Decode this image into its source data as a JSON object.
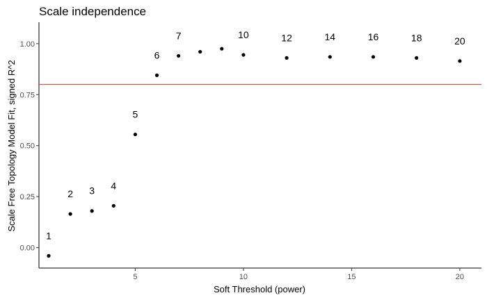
{
  "chart_data": {
    "type": "scatter",
    "title": "Scale independence",
    "xlabel": "Soft Threshold (power)",
    "ylabel": "Scale Free Topology Model Fit, signed R^2",
    "xlim": [
      0.55,
      21.0
    ],
    "ylim": [
      -0.1,
      1.105
    ],
    "x_ticks": [
      5,
      10,
      15,
      20
    ],
    "x_tick_labels": [
      "5",
      "10",
      "15",
      "20"
    ],
    "y_ticks": [
      0,
      0.25,
      0.5,
      0.75,
      1.0
    ],
    "y_tick_labels": [
      "0.00",
      "0.25",
      "0.50",
      "0.75",
      "1.00"
    ],
    "grid": false,
    "reference_line": {
      "y": 0.8,
      "color": "#c0392b"
    },
    "point_color": "#000000",
    "points": [
      {
        "x": 1,
        "y": -0.04,
        "label": "1"
      },
      {
        "x": 2,
        "y": 0.165,
        "label": "2"
      },
      {
        "x": 3,
        "y": 0.18,
        "label": "3"
      },
      {
        "x": 4,
        "y": 0.205,
        "label": "4"
      },
      {
        "x": 5,
        "y": 0.555,
        "label": "5"
      },
      {
        "x": 6,
        "y": 0.845,
        "label": "6"
      },
      {
        "x": 7,
        "y": 0.94,
        "label": "7"
      },
      {
        "x": 8,
        "y": 0.96,
        "label": ""
      },
      {
        "x": 9,
        "y": 0.975,
        "label": ""
      },
      {
        "x": 10,
        "y": 0.945,
        "label": "10"
      },
      {
        "x": 12,
        "y": 0.93,
        "label": "12"
      },
      {
        "x": 14,
        "y": 0.935,
        "label": "14"
      },
      {
        "x": 16,
        "y": 0.935,
        "label": "16"
      },
      {
        "x": 18,
        "y": 0.93,
        "label": "18"
      },
      {
        "x": 20,
        "y": 0.915,
        "label": "20"
      }
    ]
  }
}
